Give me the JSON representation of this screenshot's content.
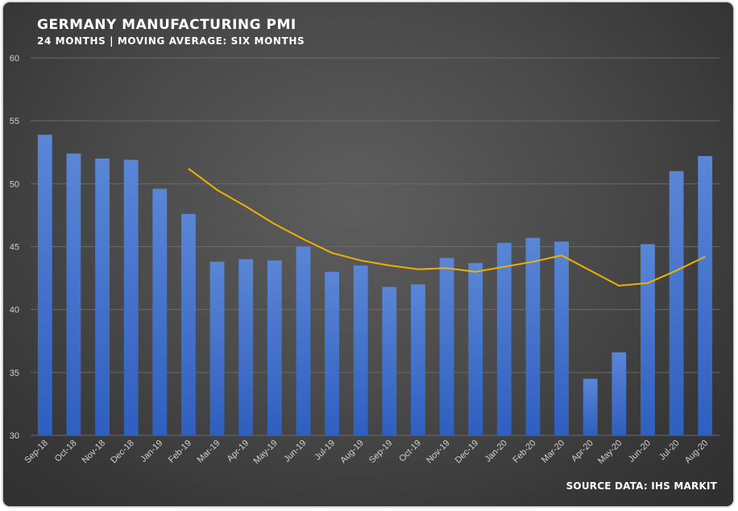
{
  "title": "GERMANY MANUFACTURING PMI",
  "subtitle": "24 MONTHS | MOVING AVERAGE: SIX MONTHS",
  "source": "SOURCE DATA: IHS MARKIT",
  "colors": {
    "bar_top": "#5a86d6",
    "bar_bottom": "#2f5fbf",
    "moving_average": "#f0b000",
    "gridline": "#6a6a6a"
  },
  "chart_data": {
    "type": "bar",
    "title": "GERMANY MANUFACTURING PMI",
    "subtitle": "24 MONTHS | MOVING AVERAGE: SIX MONTHS",
    "categories": [
      "Sep-18",
      "Oct-18",
      "Nov-18",
      "Dec-18",
      "Jan-19",
      "Feb-19",
      "Mar-19",
      "Apr-19",
      "May-19",
      "Jun-19",
      "Jul-19",
      "Aug-19",
      "Sep-19",
      "Oct-19",
      "Nov-19",
      "Dec-19",
      "Jan-20",
      "Feb-20",
      "Mar-20",
      "Apr-20",
      "May-20",
      "Jun-20",
      "Jul-20",
      "Aug-20"
    ],
    "series": [
      {
        "type": "bar",
        "values": [
          53.9,
          52.4,
          52.0,
          51.9,
          49.6,
          47.6,
          43.8,
          44.0,
          43.9,
          45.0,
          43.0,
          43.5,
          41.8,
          42.0,
          44.1,
          43.7,
          45.3,
          45.7,
          45.4,
          34.5,
          36.6,
          45.2,
          51.0,
          52.2
        ]
      },
      {
        "type": "line",
        "values": [
          null,
          null,
          null,
          null,
          null,
          51.2,
          49.5,
          48.2,
          46.8,
          45.6,
          44.5,
          43.9,
          43.5,
          43.2,
          43.3,
          43.0,
          43.4,
          43.8,
          44.3,
          null,
          41.9,
          42.1,
          43.1,
          44.2
        ]
      }
    ],
    "ylim": [
      30,
      60
    ],
    "yticks": [
      30,
      35,
      40,
      45,
      50,
      55,
      60
    ],
    "grid": true,
    "legend": "none"
  }
}
